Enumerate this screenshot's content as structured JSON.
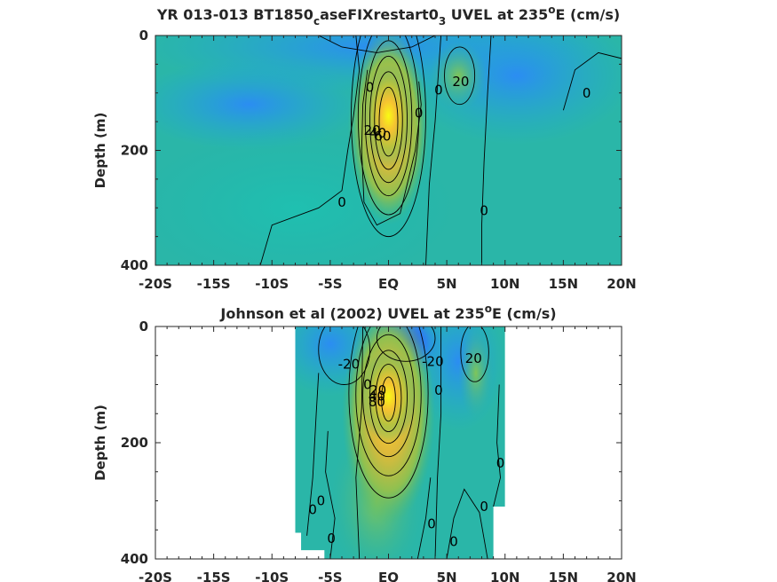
{
  "chart_data": [
    {
      "type": "heatmap",
      "subtype": "filled-contour",
      "title_parts": [
        {
          "text": "YR 013-013 BT1850"
        },
        {
          "text": "c",
          "sub": true
        },
        {
          "text": "aseFIXrestart0"
        },
        {
          "text": "3",
          "sub": true
        },
        {
          "text": " UVEL at 235"
        },
        {
          "text": "o",
          "sup": true
        },
        {
          "text": "E (cm/s)"
        }
      ],
      "ylabel": "Depth (m)",
      "x_ticks": [
        "-20S",
        "-15S",
        "-10S",
        "-5S",
        "EQ",
        "5N",
        "10N",
        "15N",
        "20N"
      ],
      "x_tick_values": [
        -20,
        -15,
        -10,
        -5,
        0,
        5,
        10,
        15,
        20
      ],
      "xlim": [
        -20,
        20
      ],
      "y_ticks": [
        "0",
        "200",
        "400"
      ],
      "y_tick_values": [
        0,
        200,
        400
      ],
      "ylim": [
        0,
        400
      ],
      "y_reversed": true,
      "data_extent": [
        -20,
        20
      ],
      "contour_labels": [
        {
          "text": "0",
          "x": -1.6,
          "y": 90
        },
        {
          "text": "0",
          "x": 4.3,
          "y": 95
        },
        {
          "text": "20",
          "x": 6.2,
          "y": 80
        },
        {
          "text": "0",
          "x": 17.0,
          "y": 100
        },
        {
          "text": "0",
          "x": 2.6,
          "y": 135
        },
        {
          "text": "20",
          "x": -1.4,
          "y": 165
        },
        {
          "text": "40",
          "x": -0.9,
          "y": 170
        },
        {
          "text": "60",
          "x": -0.5,
          "y": 175
        },
        {
          "text": "0",
          "x": -4.0,
          "y": 290
        },
        {
          "text": "0",
          "x": 8.2,
          "y": 305
        }
      ]
    },
    {
      "type": "heatmap",
      "subtype": "filled-contour",
      "title_parts": [
        {
          "text": "Johnson et al (2002) UVEL at 235"
        },
        {
          "text": "o",
          "sup": true
        },
        {
          "text": "E (cm/s)"
        }
      ],
      "ylabel": "Depth (m)",
      "x_ticks": [
        "-20S",
        "-15S",
        "-10S",
        "-5S",
        "EQ",
        "5N",
        "10N",
        "15N",
        "20N"
      ],
      "x_tick_values": [
        -20,
        -15,
        -10,
        -5,
        0,
        5,
        10,
        15,
        20
      ],
      "xlim": [
        -20,
        20
      ],
      "y_ticks": [
        "0",
        "200",
        "400"
      ],
      "y_tick_values": [
        0,
        200,
        400
      ],
      "ylim": [
        0,
        400
      ],
      "y_reversed": true,
      "data_extent": [
        -8,
        10
      ],
      "contour_labels": [
        {
          "text": "-20",
          "x": -3.4,
          "y": 65
        },
        {
          "text": "-20",
          "x": 3.8,
          "y": 60
        },
        {
          "text": "20",
          "x": 7.3,
          "y": 55
        },
        {
          "text": "0",
          "x": -1.8,
          "y": 100
        },
        {
          "text": "20",
          "x": -0.9,
          "y": 110
        },
        {
          "text": "40",
          "x": -1.0,
          "y": 120
        },
        {
          "text": "80",
          "x": -1.0,
          "y": 130
        },
        {
          "text": "0",
          "x": 4.3,
          "y": 110
        },
        {
          "text": "0",
          "x": 9.6,
          "y": 235
        },
        {
          "text": "0",
          "x": -6.5,
          "y": 315
        },
        {
          "text": "0",
          "x": -5.8,
          "y": 300
        },
        {
          "text": "0",
          "x": 8.2,
          "y": 310
        },
        {
          "text": "0",
          "x": 3.7,
          "y": 340
        },
        {
          "text": "0",
          "x": -4.9,
          "y": 365
        },
        {
          "text": "0",
          "x": 5.6,
          "y": 370
        }
      ]
    }
  ]
}
